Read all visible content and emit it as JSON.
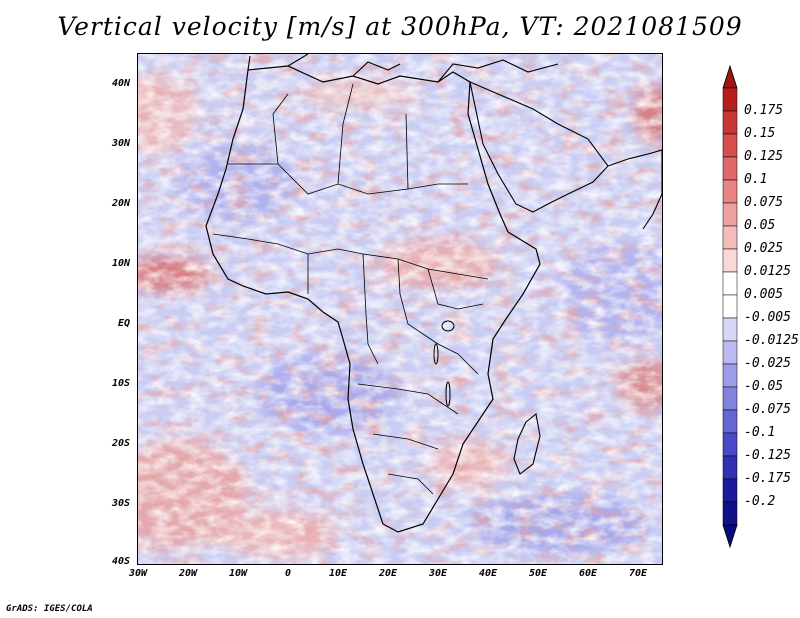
{
  "title": "Vertical velocity [m/s] at 300hPa, VT: 2021081509",
  "credit": "GrADS: IGES/COLA",
  "map": {
    "y_ticks": [
      "40N",
      "30N",
      "20N",
      "10N",
      "EQ",
      "10S",
      "20S",
      "30S",
      "40S"
    ],
    "x_ticks": [
      "30W",
      "20W",
      "10W",
      "0",
      "10E",
      "20E",
      "30E",
      "40E",
      "50E",
      "60E",
      "70E"
    ],
    "region": "Africa"
  },
  "colorbar": {
    "labels": [
      "0.175",
      "0.15",
      "0.125",
      "0.1",
      "0.075",
      "0.05",
      "0.025",
      "0.0125",
      "0.005",
      "-0.005",
      "-0.0125",
      "-0.025",
      "-0.05",
      "-0.075",
      "-0.1",
      "-0.125",
      "-0.175",
      "-0.2"
    ],
    "colors": [
      "#b81d1d",
      "#c83535",
      "#d64d4d",
      "#e06868",
      "#e88484",
      "#efa0a0",
      "#f5bcbc",
      "#fad8d8",
      "#ffffff",
      "#ffffff",
      "#d6d6f7",
      "#babaf0",
      "#9e9ee8",
      "#8282df",
      "#6666d4",
      "#4a4ac6",
      "#3030b4",
      "#1a1a9c",
      "#10108a"
    ],
    "top_color": "#a01414",
    "bottom_color": "#0a0a80"
  }
}
